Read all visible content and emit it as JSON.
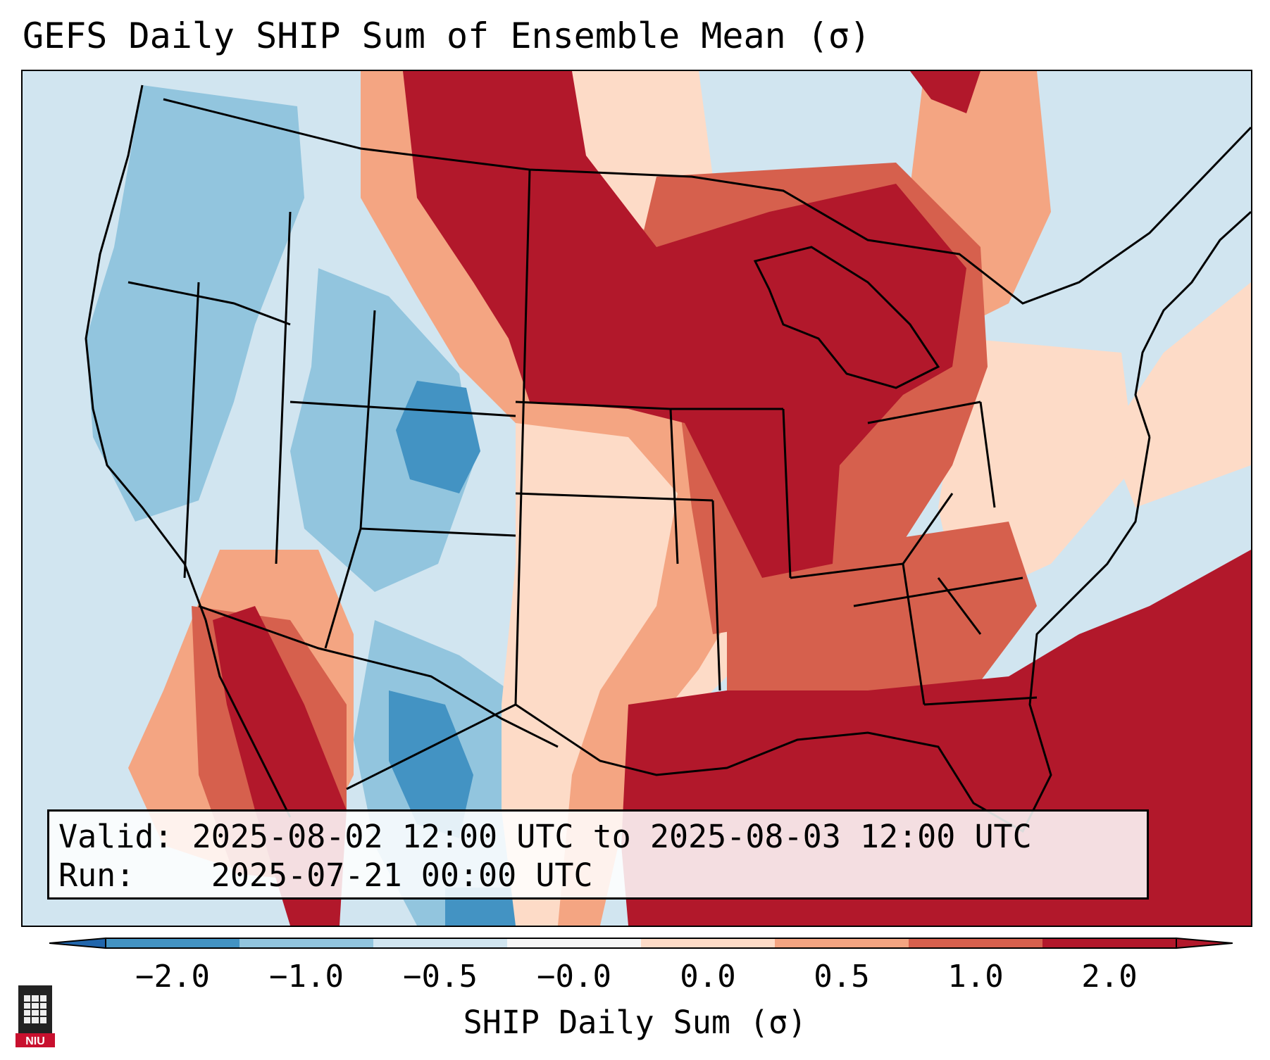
{
  "title": "GEFS Daily SHIP Sum of Ensemble Mean (σ)",
  "info": {
    "valid_label": "Valid:",
    "valid_value": "2025-08-02 12:00 UTC to 2025-08-03 12:00 UTC",
    "run_label": "Run:",
    "run_value": "2025-07-21 00:00 UTC"
  },
  "colorbar": {
    "label": "SHIP Daily Sum (σ)",
    "ticks": [
      "−2.0",
      "−1.0",
      "−0.5",
      "−0.0",
      "0.0",
      "0.5",
      "1.0",
      "2.0"
    ],
    "colors": [
      "#4393c3",
      "#92c5de",
      "#d1e5f0",
      "#f7f7f7",
      "#fddbc7",
      "#f4a582",
      "#d6604d",
      "#b2182b"
    ],
    "under_color": "#2166ac",
    "over_color": "#b2182b"
  },
  "palette": {
    "neg_strong": "#4393c3",
    "neg_mid": "#92c5de",
    "neg_weak": "#d1e5f0",
    "pos_weak": "#fddbc7",
    "pos_mid": "#f4a582",
    "pos_strong": "#d6604d",
    "pos_max": "#b2182b"
  },
  "logo": {
    "text": "NIU",
    "color": "#c8102e"
  }
}
